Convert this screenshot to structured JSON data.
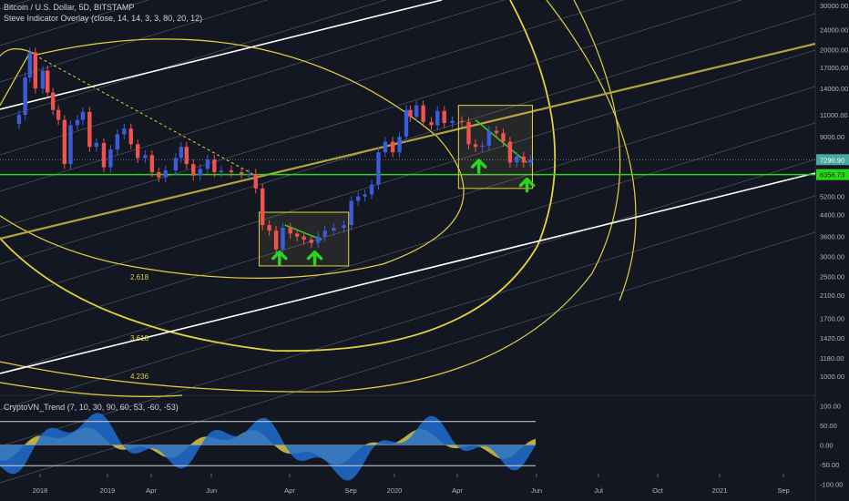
{
  "header": {
    "title": "Bitcoin / U.S. Dollar, 5D, BITSTAMP",
    "indicator": "Steve Indicator Overlay (close, 14, 14, 3, 3, 80, 20, 12)",
    "sub_indicator": "CryptoVN_Trend (7, 10, 30, 90, 60, 53, -60, -53)"
  },
  "colors": {
    "background": "#131722",
    "up": "#3b5bdb",
    "down": "#ef5350",
    "neutral": "#26a69a",
    "fib": "#e6d23a",
    "support": "#2bd61f",
    "channel": "#ffffff",
    "arrow": "#2bd61f",
    "price_badge": "#47a8a0",
    "osc_blue": "#1e6fd0",
    "osc_yellow": "#d9c84a"
  },
  "chart_data": [
    {
      "type": "candlestick",
      "x_axis_labels": [
        "2018",
        "Apr",
        "Jun",
        "Sep",
        "2019",
        "Apr",
        "Jun",
        "Sep",
        "2020",
        "Apr",
        "Jul",
        "Oct",
        "2021"
      ],
      "y_axis_scale": "log",
      "y_ticks": [
        30000,
        24000,
        20000,
        17000,
        14000,
        11000,
        9000,
        7290.9,
        6356.73,
        5200,
        4400,
        3600,
        3000,
        2500,
        2100,
        1700,
        1420,
        1180,
        1000
      ],
      "ylim": [
        900,
        32000
      ],
      "price_labels": {
        "current": "7290.90",
        "support": "6356.73"
      },
      "fib_labels": [
        "2.618",
        "3.618",
        "4.236"
      ],
      "close_series": [
        [
          "2017-12-01",
          11000
        ],
        [
          "2017-12-10",
          15500
        ],
        [
          "2017-12-17",
          19500
        ],
        [
          "2017-12-25",
          14000
        ],
        [
          "2018-01-05",
          16500
        ],
        [
          "2018-01-12",
          13500
        ],
        [
          "2018-01-20",
          11500
        ],
        [
          "2018-01-28",
          10500
        ],
        [
          "2018-02-06",
          7000
        ],
        [
          "2018-02-15",
          10000
        ],
        [
          "2018-02-25",
          10500
        ],
        [
          "2018-03-05",
          11300
        ],
        [
          "2018-03-15",
          8200
        ],
        [
          "2018-03-25",
          8500
        ],
        [
          "2018-04-05",
          6800
        ],
        [
          "2018-04-15",
          8000
        ],
        [
          "2018-04-25",
          9200
        ],
        [
          "2018-05-05",
          9700
        ],
        [
          "2018-05-15",
          8400
        ],
        [
          "2018-05-25",
          7400
        ],
        [
          "2018-06-05",
          7600
        ],
        [
          "2018-06-15",
          6500
        ],
        [
          "2018-06-25",
          6200
        ],
        [
          "2018-07-05",
          6600
        ],
        [
          "2018-07-20",
          7400
        ],
        [
          "2018-07-28",
          8200
        ],
        [
          "2018-08-05",
          7000
        ],
        [
          "2018-08-15",
          6300
        ],
        [
          "2018-08-25",
          6700
        ],
        [
          "2018-09-05",
          7300
        ],
        [
          "2018-09-15",
          6500
        ],
        [
          "2018-09-25",
          6600
        ],
        [
          "2018-10-10",
          6500
        ],
        [
          "2018-10-25",
          6400
        ],
        [
          "2018-11-05",
          6400
        ],
        [
          "2018-11-15",
          5600
        ],
        [
          "2018-11-25",
          4000
        ],
        [
          "2018-12-05",
          3800
        ],
        [
          "2018-12-15",
          3200
        ],
        [
          "2018-12-25",
          3900
        ],
        [
          "2019-01-05",
          3700
        ],
        [
          "2019-01-15",
          3600
        ],
        [
          "2019-01-25",
          3500
        ],
        [
          "2019-02-05",
          3400
        ],
        [
          "2019-02-15",
          3600
        ],
        [
          "2019-02-25",
          3800
        ],
        [
          "2019-03-10",
          3900
        ],
        [
          "2019-03-25",
          4000
        ],
        [
          "2019-04-05",
          5000
        ],
        [
          "2019-04-15",
          5200
        ],
        [
          "2019-04-25",
          5300
        ],
        [
          "2019-05-05",
          5800
        ],
        [
          "2019-05-15",
          7800
        ],
        [
          "2019-05-25",
          8600
        ],
        [
          "2019-06-05",
          7800
        ],
        [
          "2019-06-15",
          9000
        ],
        [
          "2019-06-25",
          11500
        ],
        [
          "2019-07-01",
          10800
        ],
        [
          "2019-07-10",
          12000
        ],
        [
          "2019-07-20",
          10300
        ],
        [
          "2019-08-01",
          10000
        ],
        [
          "2019-08-10",
          11400
        ],
        [
          "2019-08-20",
          10200
        ],
        [
          "2019-09-01",
          10400
        ],
        [
          "2019-09-15",
          10300
        ],
        [
          "2019-09-25",
          8400
        ],
        [
          "2019-10-05",
          8200
        ],
        [
          "2019-10-15",
          8300
        ],
        [
          "2019-10-25",
          9500
        ],
        [
          "2019-11-05",
          9300
        ],
        [
          "2019-11-15",
          8600
        ],
        [
          "2019-11-25",
          7100
        ],
        [
          "2019-12-05",
          7500
        ],
        [
          "2019-12-15",
          7100
        ],
        [
          "2019-12-25",
          7290.9
        ]
      ]
    },
    {
      "type": "area",
      "name": "CryptoVN_Trend",
      "y_ticks": [
        100.0,
        50.0,
        0.0,
        -50.0,
        -100.0
      ],
      "ylim": [
        -110,
        110
      ],
      "levels": [
        60,
        -53
      ]
    }
  ]
}
